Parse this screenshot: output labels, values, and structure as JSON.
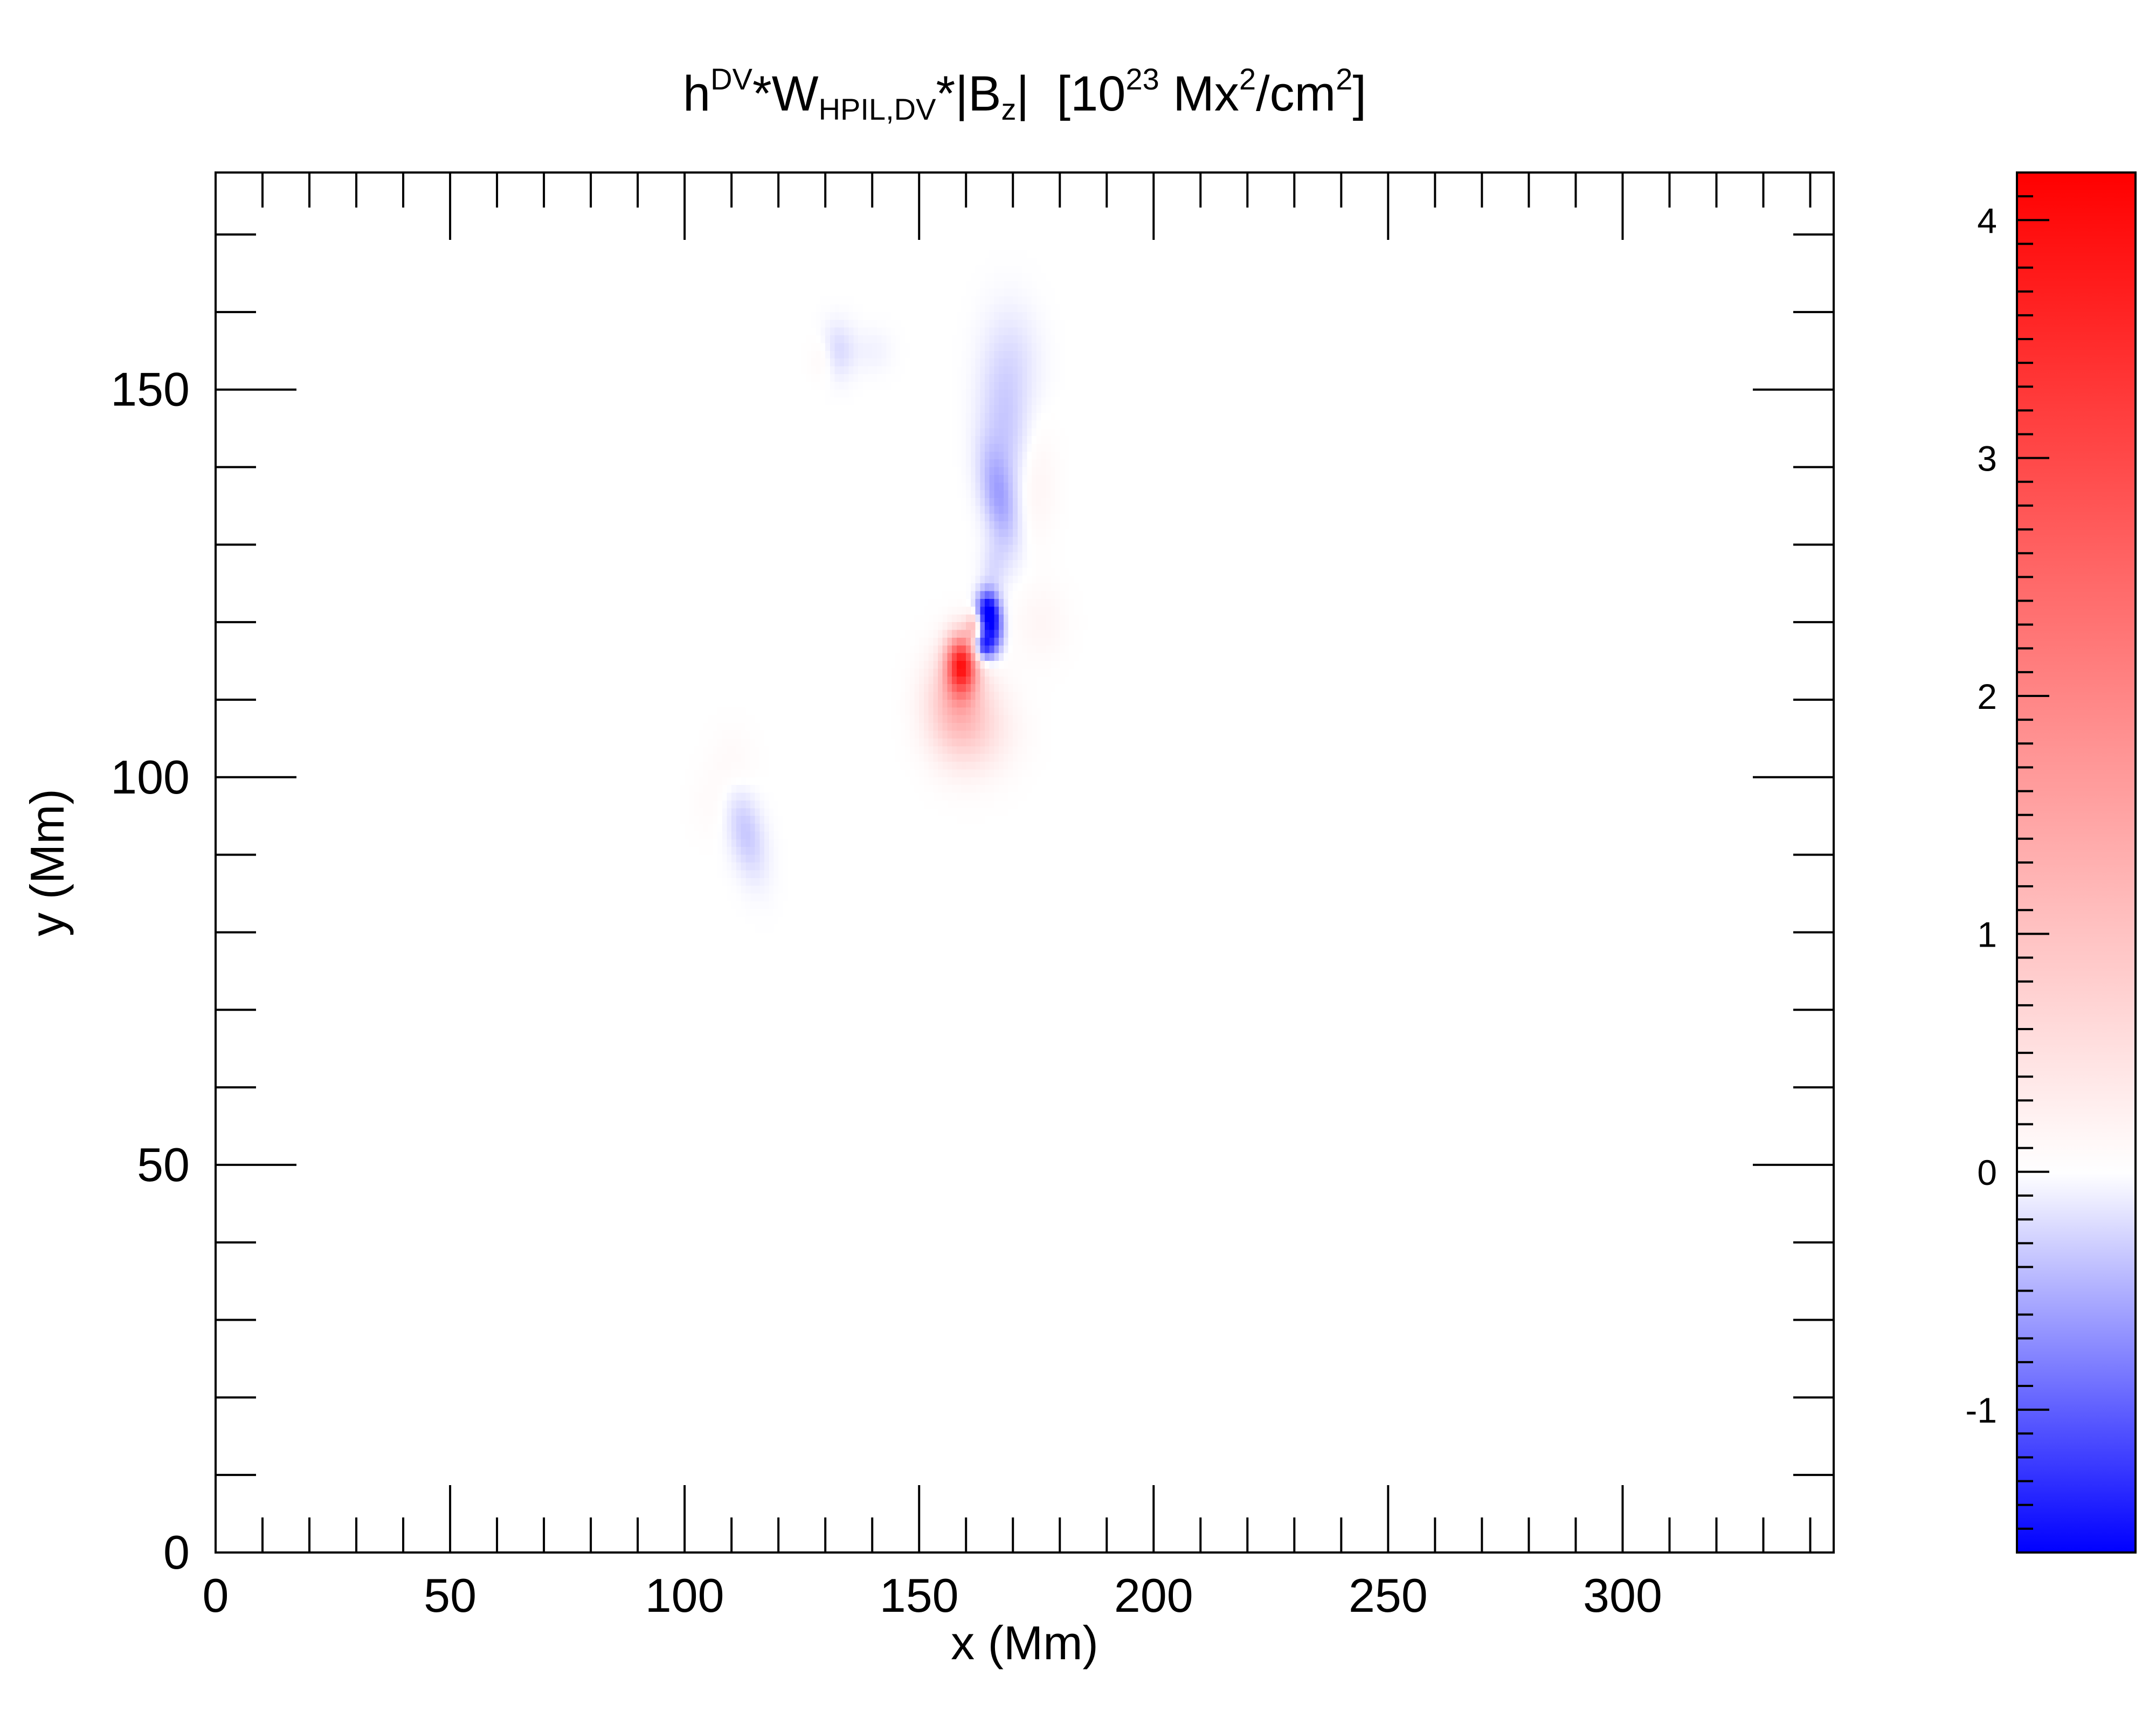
{
  "chart_data": {
    "type": "heatmap",
    "title": {
      "parts": [
        {
          "text": "h",
          "style": "normal"
        },
        {
          "text": "DV",
          "style": "sup"
        },
        {
          "text": "*W",
          "style": "normal"
        },
        {
          "text": "HPIL,DV",
          "style": "sub"
        },
        {
          "text": "*|B",
          "style": "normal"
        },
        {
          "text": "z",
          "style": "sub"
        },
        {
          "text": "|  [10",
          "style": "normal"
        },
        {
          "text": "23",
          "style": "sup"
        },
        {
          "text": " Mx",
          "style": "normal"
        },
        {
          "text": "2",
          "style": "sup"
        },
        {
          "text": "/cm",
          "style": "normal"
        },
        {
          "text": "2",
          "style": "sup"
        },
        {
          "text": "]",
          "style": "normal"
        }
      ]
    },
    "xlabel": "x (Mm)",
    "ylabel": "y (Mm)",
    "xlim": [
      0,
      345
    ],
    "ylim": [
      0,
      178
    ],
    "x_ticks": [
      0,
      50,
      100,
      150,
      200,
      250,
      300
    ],
    "y_ticks": [
      0,
      50,
      100,
      150
    ],
    "x_minor_step": 10,
    "y_minor_step": 10,
    "colorbar": {
      "range": [
        -1.6,
        4.2
      ],
      "ticks": [
        -1,
        0,
        1,
        2,
        3,
        4
      ],
      "minor_step": 0.1,
      "colors": {
        "negative": "#0000ff",
        "zero": "#ffffff",
        "positive": "#ff0000"
      }
    },
    "features": [
      {
        "x": 164.5,
        "y": 121.5,
        "value": -1.5,
        "sx": 1.6,
        "sy": 1.8,
        "angle": 0
      },
      {
        "x": 163.5,
        "y": 116.8,
        "value": -1.4,
        "sx": 1.6,
        "sy": 1.4,
        "angle": 0
      },
      {
        "x": 166.0,
        "y": 119.0,
        "value": -1.0,
        "sx": 1.5,
        "sy": 2.2,
        "angle": 0
      },
      {
        "x": 159.0,
        "y": 114.5,
        "value": 3.4,
        "sx": 2.2,
        "sy": 2.6,
        "angle": 0
      },
      {
        "x": 158.0,
        "y": 109.5,
        "value": 1.1,
        "sx": 4.5,
        "sy": 4.5,
        "angle": 0
      },
      {
        "x": 163.0,
        "y": 106.0,
        "value": 0.4,
        "sx": 5.5,
        "sy": 4.0,
        "angle": 0
      },
      {
        "x": 161.5,
        "y": 119.5,
        "value": 0.9,
        "sx": 1.0,
        "sy": 1.2,
        "angle": 0
      },
      {
        "x": 167.0,
        "y": 136.0,
        "value": -0.55,
        "sx": 2.5,
        "sy": 5.0,
        "angle": 20
      },
      {
        "x": 168.5,
        "y": 145.0,
        "value": -0.3,
        "sx": 3.5,
        "sy": 6.0,
        "angle": 15
      },
      {
        "x": 170.0,
        "y": 154.0,
        "value": -0.18,
        "sx": 4.0,
        "sy": 5.0,
        "angle": 10
      },
      {
        "x": 166.0,
        "y": 127.0,
        "value": -0.2,
        "sx": 2.0,
        "sy": 2.5,
        "angle": 0
      },
      {
        "x": 175.0,
        "y": 138.0,
        "value": 0.18,
        "sx": 3.0,
        "sy": 5.0,
        "angle": 0
      },
      {
        "x": 176.0,
        "y": 120.0,
        "value": 0.15,
        "sx": 4.0,
        "sy": 3.5,
        "angle": 0
      },
      {
        "x": 132.5,
        "y": 155.0,
        "value": -0.25,
        "sx": 2.5,
        "sy": 2.5,
        "angle": 0
      },
      {
        "x": 129.5,
        "y": 154.0,
        "value": 0.15,
        "sx": 2.0,
        "sy": 2.0,
        "angle": 0
      },
      {
        "x": 140.0,
        "y": 155.0,
        "value": -0.08,
        "sx": 3.0,
        "sy": 2.0,
        "angle": 0
      },
      {
        "x": 113.0,
        "y": 93.0,
        "value": -0.35,
        "sx": 2.5,
        "sy": 4.5,
        "angle": 25
      },
      {
        "x": 110.0,
        "y": 101.0,
        "value": 0.12,
        "sx": 3.5,
        "sy": 3.5,
        "angle": 0
      },
      {
        "x": 105.0,
        "y": 96.0,
        "value": 0.06,
        "sx": 3.0,
        "sy": 3.0,
        "angle": 0
      }
    ]
  }
}
